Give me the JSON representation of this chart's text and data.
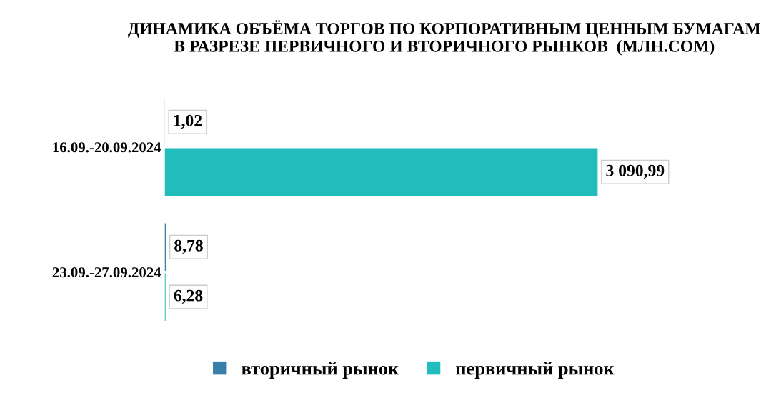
{
  "chart_data": {
    "type": "bar",
    "orientation": "horizontal",
    "title": "ДИНАМИКА ОБЪЁМА ТОРГОВ ПО КОРПОРАТИВНЫМ ЦЕННЫМ БУМАГАМ\nВ РАЗРЕЗЕ ПЕРВИЧНОГО И ВТОРИЧНОГО РЫНКОВ  (МЛН.СОМ)",
    "categories": [
      "16.09.-20.09.2024",
      "23.09.-27.09.2024"
    ],
    "series": [
      {
        "name": "вторичный рынок",
        "color": "#3a7fa8",
        "values": [
          1.02,
          8.78
        ],
        "value_labels": [
          "1,02",
          "8,78"
        ]
      },
      {
        "name": "первичный рынок",
        "color": "#22bcbc",
        "values": [
          3090.99,
          6.28
        ],
        "value_labels": [
          "3 090,99",
          "6,28"
        ]
      }
    ],
    "legend": "bottom",
    "grid": false,
    "tick_labels": "y"
  }
}
